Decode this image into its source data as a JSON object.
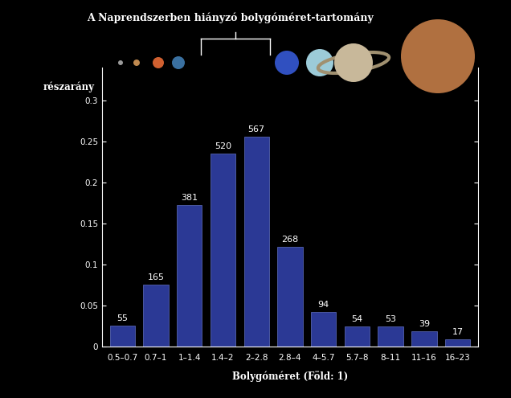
{
  "chart_data": {
    "type": "bar",
    "title": "A Naprendszerben hiányzó bolygóméret-tartomány",
    "x_label": "Bolygóméret (Föld: 1)",
    "y_label": "részarány",
    "categories": [
      "0.5–0.7",
      "0.7–1",
      "1–1.4",
      "1.4–2",
      "2–2.8",
      "2.8–4",
      "4–5.7",
      "5.7–8",
      "8–11",
      "11–16",
      "16–23"
    ],
    "values": [
      0.025,
      0.075,
      0.172,
      0.235,
      0.256,
      0.121,
      0.042,
      0.024,
      0.024,
      0.018,
      0.008
    ],
    "counts": [
      55,
      165,
      381,
      520,
      567,
      268,
      94,
      54,
      53,
      39,
      17
    ],
    "color": "#2b3995",
    "ylim": [
      0,
      0.34
    ],
    "yticks": [
      0,
      0.05,
      0.1,
      0.15,
      0.2,
      0.25,
      0.3
    ],
    "grid": false
  }
}
